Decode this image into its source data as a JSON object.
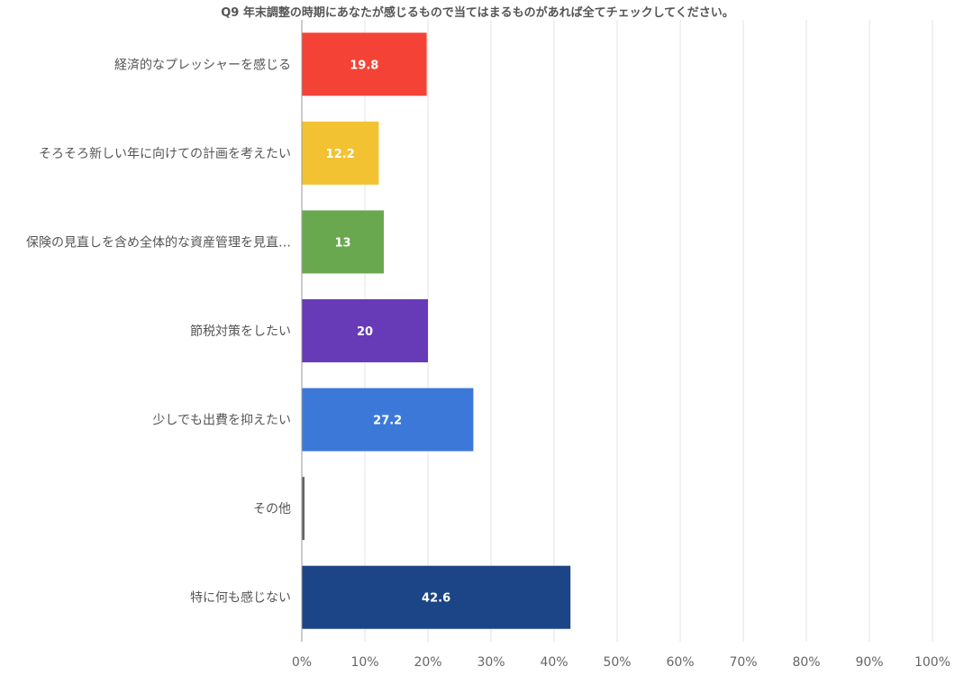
{
  "chart_data": {
    "type": "bar",
    "orientation": "horizontal",
    "title": "Q9 年末調整の時期にあなたが感じるもので当てはまるものがあれば全てチェックしてください。",
    "categories": [
      "経済的なプレッシャーを感じる",
      "そろそろ新しい年に向けての計画を考えたい",
      "保険の見直しを含め全体的な資産管理を見直…",
      "節税対策をしたい",
      "少しでも出費を抑えたい",
      "その他",
      "特に何も感じない"
    ],
    "values": [
      19.8,
      12.2,
      13,
      20,
      27.2,
      0.4,
      42.6
    ],
    "data_labels": [
      "19.8",
      "12.2",
      "13",
      "20",
      "27.2",
      "",
      "42.6"
    ],
    "colors": [
      "#f44336",
      "#f2c232",
      "#6aa84f",
      "#673ab7",
      "#3c78d8",
      "#666666",
      "#1c4587"
    ],
    "xlim": [
      0,
      100
    ],
    "xticks": [
      "0%",
      "10%",
      "20%",
      "30%",
      "40%",
      "50%",
      "60%",
      "70%",
      "80%",
      "90%",
      "100%"
    ],
    "grid": true,
    "legend": "none",
    "xlabel": "",
    "ylabel": ""
  }
}
